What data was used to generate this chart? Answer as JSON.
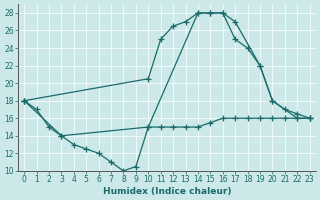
{
  "xlabel": "Humidex (Indice chaleur)",
  "xlim": [
    -0.5,
    23.5
  ],
  "ylim": [
    10,
    29
  ],
  "xticks": [
    0,
    1,
    2,
    3,
    4,
    5,
    6,
    7,
    8,
    9,
    10,
    11,
    12,
    13,
    14,
    15,
    16,
    17,
    18,
    19,
    20,
    21,
    22,
    23
  ],
  "yticks": [
    10,
    12,
    14,
    16,
    18,
    20,
    22,
    24,
    26,
    28
  ],
  "bg_color": "#cce8e8",
  "line_color": "#1a6b6b",
  "lines": [
    {
      "x": [
        0,
        1,
        2,
        3,
        4,
        5,
        6,
        7,
        8,
        9,
        10,
        11,
        12,
        13,
        14,
        15,
        16,
        17,
        18,
        19,
        20,
        21,
        22,
        23
      ],
      "y": [
        18,
        17,
        15,
        14,
        13,
        12.5,
        12,
        11,
        10,
        10.5,
        15,
        15,
        15,
        15,
        15,
        15.5,
        16,
        16,
        16,
        16,
        16,
        16,
        16,
        16
      ]
    },
    {
      "x": [
        0,
        10,
        11,
        12,
        13,
        14,
        15,
        16,
        17,
        18,
        19,
        20,
        21,
        22,
        23
      ],
      "y": [
        18,
        20.5,
        25,
        26.5,
        27,
        28,
        28,
        28,
        25,
        24,
        22,
        18,
        17,
        16.5,
        16
      ]
    },
    {
      "x": [
        0,
        3,
        10,
        14,
        15,
        16,
        17,
        19,
        20,
        22,
        23
      ],
      "y": [
        18,
        14,
        15,
        28,
        28,
        28,
        27,
        22,
        18,
        16,
        16
      ]
    }
  ]
}
